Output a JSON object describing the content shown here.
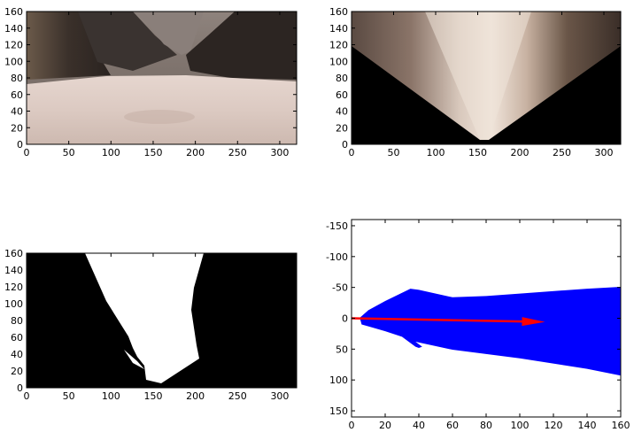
{
  "chart_data": [
    {
      "type": "image",
      "content": "camera view (mars-like canyon terrain)",
      "xticks": [
        0,
        50,
        100,
        150,
        200,
        250,
        300
      ],
      "yticks": [
        0,
        20,
        40,
        60,
        80,
        100,
        120,
        140,
        160
      ],
      "xlim": [
        0,
        320
      ],
      "ylim": [
        160,
        0
      ]
    },
    {
      "type": "image",
      "content": "perspective-warped top-down view",
      "xticks": [
        0,
        50,
        100,
        150,
        200,
        250,
        300
      ],
      "yticks": [
        0,
        20,
        40,
        60,
        80,
        100,
        120,
        140,
        160
      ],
      "xlim": [
        0,
        320
      ],
      "ylim": [
        160,
        0
      ]
    },
    {
      "type": "image",
      "content": "binary navigable-terrain threshold mask",
      "xticks": [
        0,
        50,
        100,
        150,
        200,
        250,
        300
      ],
      "yticks": [
        0,
        20,
        40,
        60,
        80,
        100,
        120,
        140,
        160
      ],
      "xlim": [
        0,
        320
      ],
      "ylim": [
        160,
        0
      ]
    },
    {
      "type": "scatter",
      "series_color": "#0000ff",
      "arrow_color": "#ff0000",
      "region_polygon": [
        [
          5,
          0
        ],
        [
          6,
          10
        ],
        [
          10,
          13
        ],
        [
          20,
          21
        ],
        [
          30,
          30
        ],
        [
          38,
          46
        ],
        [
          40,
          48
        ],
        [
          42,
          46
        ],
        [
          38,
          38
        ],
        [
          60,
          51
        ],
        [
          100,
          65
        ],
        [
          140,
          82
        ],
        [
          160,
          93
        ],
        [
          160,
          -51
        ],
        [
          140,
          -48
        ],
        [
          100,
          -40
        ],
        [
          80,
          -36
        ],
        [
          60,
          -34
        ],
        [
          40,
          -46
        ],
        [
          35,
          -48
        ],
        [
          20,
          -28
        ],
        [
          10,
          -13
        ],
        [
          5,
          -1
        ]
      ],
      "arrow": {
        "from": [
          0,
          0
        ],
        "to": [
          115,
          6
        ]
      },
      "xticks": [
        0,
        20,
        40,
        60,
        80,
        100,
        120,
        140,
        160
      ],
      "yticks": [
        -150,
        -100,
        -50,
        0,
        50,
        100,
        150
      ],
      "xlim": [
        0,
        160
      ],
      "ylim": [
        -160,
        160
      ]
    }
  ]
}
